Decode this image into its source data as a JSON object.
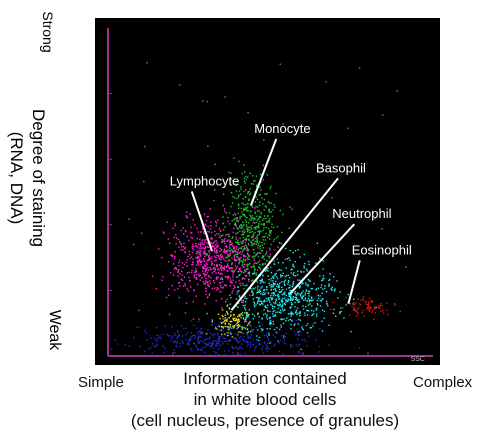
{
  "chart_data": {
    "type": "scatter",
    "title": "",
    "xlabel": [
      "Information contained",
      "in white blood cells",
      "(cell nucleus, presence of granules)"
    ],
    "ylabel": [
      "Degree of staining",
      "(RNA, DNA)"
    ],
    "x_axis_ends": {
      "low": "Simple",
      "high": "Complex"
    },
    "y_axis_ends": {
      "low": "Weak",
      "high": "Strong"
    },
    "corner_marks": {
      "bottom_right": "SSC"
    },
    "xlim": [
      0,
      100
    ],
    "ylim": [
      0,
      100
    ],
    "background": "#000000",
    "axis_color": "#a0308c",
    "series": [
      {
        "name": "Lymphocyte",
        "color": "#ff22d8",
        "center": [
          32,
          30
        ],
        "spread": [
          7,
          6
        ],
        "count": 700,
        "label": [
          19,
          52
        ],
        "pointer_to": [
          32,
          32
        ]
      },
      {
        "name": "Monocyte",
        "color": "#20c030",
        "center": [
          44,
          38
        ],
        "spread": [
          4,
          9
        ],
        "count": 500,
        "label": [
          45,
          68
        ],
        "pointer_to": [
          44,
          46
        ]
      },
      {
        "name": "Basophil",
        "color": "#e0e020",
        "center": [
          38,
          11
        ],
        "spread": [
          3,
          2
        ],
        "count": 120,
        "label": [
          64,
          56
        ],
        "pointer_to": [
          38,
          14
        ]
      },
      {
        "name": "Neutrophil",
        "color": "#22e8ee",
        "center": [
          54,
          18
        ],
        "spread": [
          8,
          5
        ],
        "count": 650,
        "label": [
          69,
          42
        ],
        "pointer_to": [
          56,
          19
        ]
      },
      {
        "name": "Eosinophil",
        "color": "#d01818",
        "center": [
          80,
          15
        ],
        "spread": [
          4,
          1.5
        ],
        "count": 80,
        "label": [
          75,
          31
        ],
        "pointer_to": [
          74,
          16
        ]
      },
      {
        "name": "",
        "color": "#2030c8",
        "center": [
          35,
          5
        ],
        "spread": [
          14,
          2.5
        ],
        "count": 400
      }
    ]
  }
}
